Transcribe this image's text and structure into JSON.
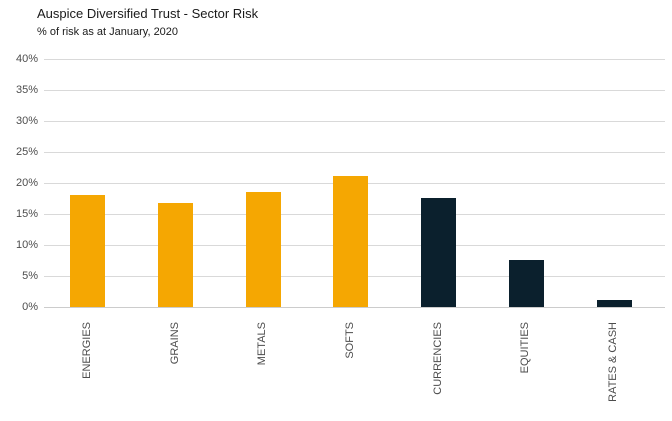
{
  "header": {
    "title": "Auspice Diversified Trust - Sector Risk",
    "subtitle": "% of risk as at January, 2020"
  },
  "chart_data": {
    "type": "bar",
    "title": "Auspice Diversified Trust - Sector Risk",
    "subtitle": "% of risk as at January, 2020",
    "categories": [
      "ENERGIES",
      "GRAINS",
      "METALS",
      "SOFTS",
      "CURRENCIES",
      "EQUITIES",
      "RATES & CASH"
    ],
    "values": [
      18.0,
      16.7,
      18.6,
      21.2,
      17.5,
      7.5,
      1.2
    ],
    "unit": "%",
    "xlabel": "",
    "ylabel": "",
    "ylim": [
      0,
      40
    ],
    "ytick_step": 5,
    "ytick_labels": [
      "0%",
      "5%",
      "10%",
      "15%",
      "20%",
      "25%",
      "30%",
      "35%",
      "40%"
    ],
    "grid": true,
    "legend": false,
    "bar_colors": [
      "#F5A702",
      "#F5A702",
      "#F5A702",
      "#F5A702",
      "#0B202D",
      "#0B202D",
      "#0B202D"
    ],
    "colors": {
      "commodity_orange": "#F5A702",
      "financial_navy": "#0B202D",
      "gridline": "#D9D9D9",
      "axis_baseline": "#CCCCCC",
      "title_text": "#1A1A1A",
      "tick_text": "#4D4D4D"
    }
  }
}
